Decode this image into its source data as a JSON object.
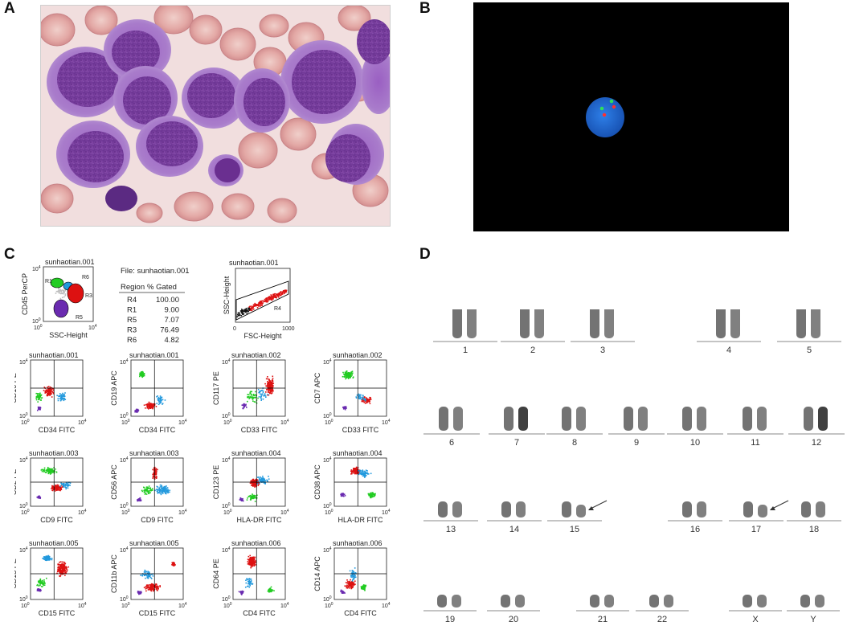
{
  "panels": {
    "a": "A",
    "b": "B",
    "c": "C",
    "d": "D"
  },
  "colors": {
    "bg": "#ffffff",
    "blast_cytoplasm": "#a576c6",
    "blast_nucleus": "#7c3f9e",
    "rbc": "#e1a9a6",
    "fish_background": "#000000",
    "fish_nucleus": "#1f6ad6",
    "fish_green_signal": "#2fe05a",
    "fish_red_signal": "#ff3030",
    "flow_green": "#22cc22",
    "flow_red": "#dd1111",
    "flow_blue": "#2299dd",
    "flow_purple": "#6a2bb0",
    "flow_black": "#111111"
  },
  "flow": {
    "gating_plot": {
      "title": "sunhaotian.001",
      "xlabel": "SSC-Height",
      "ylabel": "CD45 PerCP",
      "region_labels": [
        "R1",
        "R6",
        "R3",
        "R5"
      ]
    },
    "stats": {
      "file": "File: sunhaotian.001",
      "headers": [
        "Region",
        "% Gated"
      ],
      "rows": [
        [
          "R4",
          "100.00"
        ],
        [
          "R1",
          "9.00"
        ],
        [
          "R5",
          "7.07"
        ],
        [
          "R3",
          "76.49"
        ],
        [
          "R6",
          "4.82"
        ]
      ]
    },
    "scatter_plot": {
      "title": "sunhaotian.001",
      "xlabel": "FSC-Height",
      "ylabel": "SSC-Height",
      "region_label": "R4",
      "x_ticks": [
        "0",
        "1000"
      ]
    },
    "log_ticks": {
      "low": "10",
      "low_exp": "0",
      "high": "10",
      "high_exp": "4"
    },
    "plots": [
      {
        "title": "sunhaotian.001",
        "xlabel": "CD34 FITC",
        "ylabel": "CD10 PE"
      },
      {
        "title": "sunhaotian.001",
        "xlabel": "CD34 FITC",
        "ylabel": "CD19 APC"
      },
      {
        "title": "sunhaotian.002",
        "xlabel": "CD33 FITC",
        "ylabel": "CD117 PE"
      },
      {
        "title": "sunhaotian.002",
        "xlabel": "CD33 FITC",
        "ylabel": "CD7 APC"
      },
      {
        "title": "sunhaotian.003",
        "xlabel": "CD9 FITC",
        "ylabel": "CD2 PE"
      },
      {
        "title": "sunhaotian.003",
        "xlabel": "CD9 FITC",
        "ylabel": "CD56 APC"
      },
      {
        "title": "sunhaotian.004",
        "xlabel": "HLA-DR FITC",
        "ylabel": "CD123 PE"
      },
      {
        "title": "sunhaotian.004",
        "xlabel": "HLA-DR FITC",
        "ylabel": "CD38 APC"
      },
      {
        "title": "sunhaotian.005",
        "xlabel": "CD15 FITC",
        "ylabel": "CD13 PE"
      },
      {
        "title": "sunhaotian.005",
        "xlabel": "CD15 FITC",
        "ylabel": "CD11b APC"
      },
      {
        "title": "sunhaotian.006",
        "xlabel": "CD4 FITC",
        "ylabel": "CD64 PE"
      },
      {
        "title": "sunhaotian.006",
        "xlabel": "CD4 FITC",
        "ylabel": "CD14 APC"
      }
    ]
  },
  "karyotype": {
    "rows": [
      [
        "1",
        "2",
        "3",
        "4",
        "5"
      ],
      [
        "6",
        "7",
        "8",
        "9",
        "10",
        "11",
        "12"
      ],
      [
        "13",
        "14",
        "15",
        "16",
        "17",
        "18"
      ],
      [
        "19",
        "20",
        "21",
        "22",
        "X",
        "Y"
      ]
    ],
    "abnormal_pairs": [
      "15",
      "17"
    ]
  }
}
